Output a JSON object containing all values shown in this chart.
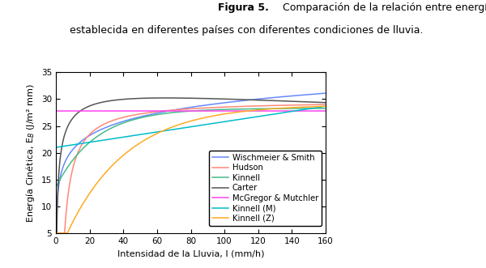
{
  "title_bold": "Figura 5.",
  "title_normal": " Comparación de la relación entre energía cinética e intensidad\n  establecida en diferentes países con diferentes condiciones de lluvia.",
  "xlabel": "Intensidad de la Lluvia, I (mm/h)",
  "ylabel": "Energía Cinética, E₂ (J/m² mm)",
  "xlim": [
    0,
    160
  ],
  "ylim": [
    5,
    35
  ],
  "xticks": [
    0,
    20,
    40,
    60,
    80,
    100,
    120,
    140,
    160
  ],
  "yticks": [
    5,
    10,
    15,
    20,
    25,
    30,
    35
  ],
  "legend_entries": [
    "Wischmeier & Smith",
    "Hudson",
    "Kinnell",
    "Carter",
    "McGregor & Mutchler",
    "Kinnell (M)",
    "Kinnell (Z)"
  ],
  "colors": {
    "Wischmeier & Smith": "#6688ff",
    "Hudson": "#ff8877",
    "Kinnell": "#44bb88",
    "Carter": "#555555",
    "McGregor & Mutchler": "#ff44ee",
    "Kinnell (M)": "#00bbcc",
    "Kinnell (Z)": "#ffaa22"
  },
  "figsize": [
    6.0,
    3.31
  ],
  "dpi": 100
}
